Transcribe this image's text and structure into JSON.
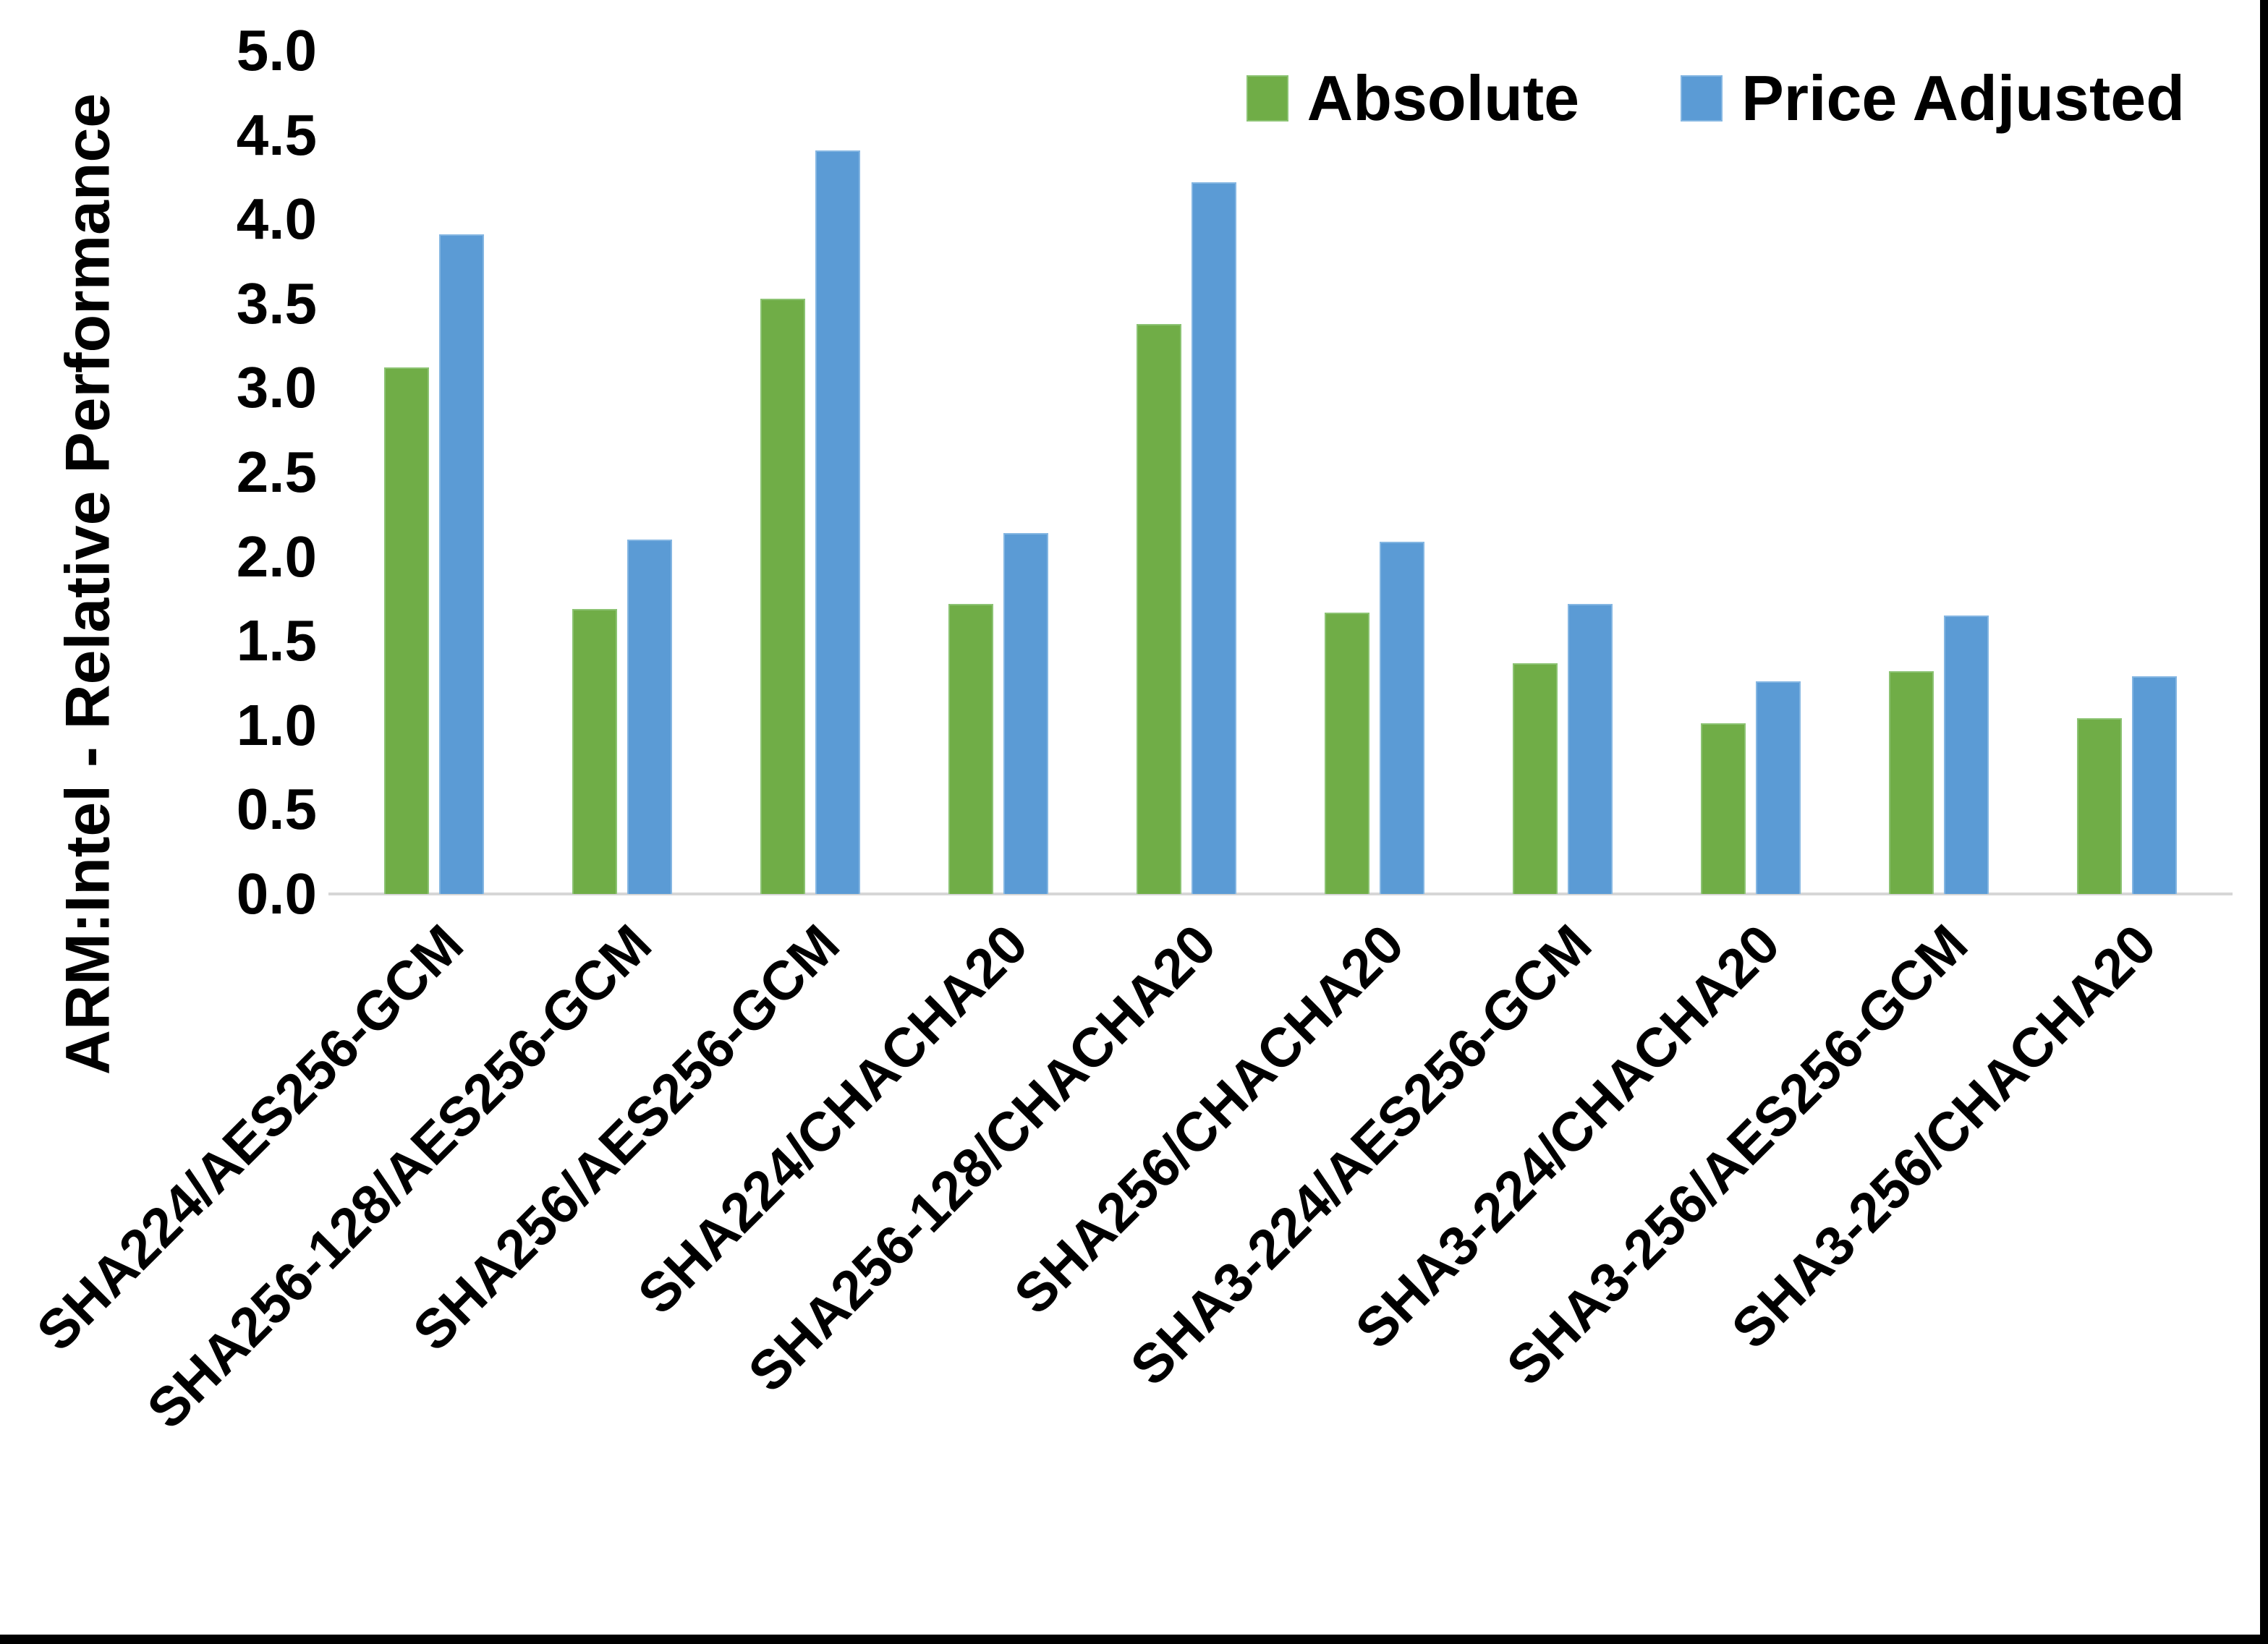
{
  "chart_data": {
    "type": "bar",
    "title": "",
    "xlabel": "",
    "ylabel": "ARM:Intel - Relative Performance",
    "ylim": [
      0,
      5
    ],
    "y_tick_step": 0.5,
    "y_ticks": [
      "5.0",
      "4.5",
      "4.0",
      "3.5",
      "3.0",
      "2.5",
      "2.0",
      "1.5",
      "1.0",
      "0.5",
      "0.0"
    ],
    "grid": false,
    "legend_position": "top-right",
    "x_label_rotation_deg": 45,
    "categories": [
      "SHA224/AES256-GCM",
      "SHA256-128/AES256-GCM",
      "SHA256/AES256-GCM",
      "SHA224/CHACHA20",
      "SHA256-128/CHACHA20",
      "SHA256/CHACHA20",
      "SHA3-224/AES256-GCM",
      "SHA3-224/CHACHA20",
      "SHA3-256/AES256-GCM",
      "SHA3-256/CHACHA20"
    ],
    "series": [
      {
        "name": "Absolute",
        "color": "#70AD47",
        "border_color": "#8CC373",
        "values": [
          3.12,
          1.69,
          3.53,
          1.72,
          3.38,
          1.67,
          1.37,
          1.01,
          1.32,
          1.04
        ]
      },
      {
        "name": "Price Adjusted",
        "color": "#5B9BD5",
        "border_color": "#84B6E2",
        "values": [
          3.91,
          2.1,
          4.41,
          2.14,
          4.22,
          2.09,
          1.72,
          1.26,
          1.65,
          1.29
        ]
      }
    ]
  },
  "colors": {
    "background": "#ffffff",
    "text": "#000000",
    "axis_line": "#d6d6d6",
    "frame": "#000000"
  }
}
